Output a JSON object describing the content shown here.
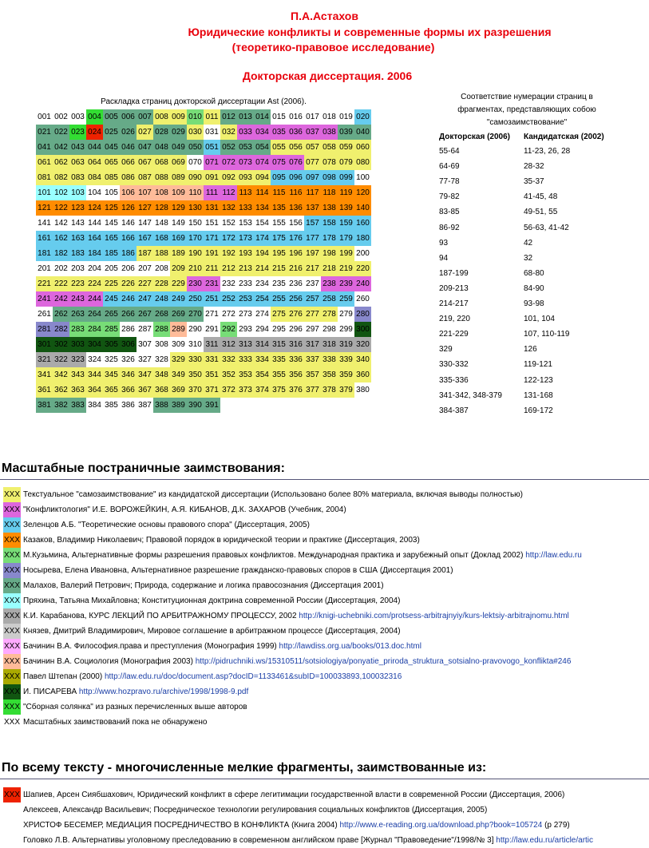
{
  "header": {
    "author": "П.А.Астахов",
    "title": "Юридические конфликты и современные формы их разрешения",
    "subtitle": "(теоретико-правовое исследование)",
    "kind": "Докторская диссертация. 2006"
  },
  "grid": {
    "caption": "Раскладка страниц докторской диссертации Ast (2006).",
    "palette": {
      "y": "#f0f06e",
      "m": "#dd66dd",
      "b": "#66ccee",
      "o": "#ff8c00",
      "g": "#77dd77",
      "p": "#8888cc",
      "d": "#66aa88",
      "c": "#99ffff",
      "s": "#aaaaaa",
      "t": "#cccccc",
      "v": "#ffaaff",
      "k": "#ffbb99",
      "l": "#aaaa00",
      "D": "#115511",
      "G": "#33dd33",
      "r": "#ee2200",
      "n": "transparent"
    },
    "fills": [
      "nnnGdddyygydddnnnnnb",
      "ddGrddyddynymmmmmmdd",
      "ddddddddddbdddyyyyyy",
      "yyyyyyyyynmmmmmmyyyy",
      "yyyyyyyyyyyyyybbbbbn",
      "cccnnkkkkkmmoooooooo",
      "oooooooooooooooooooo",
      "nnnnnnnnnnnnnnnnbbbb",
      "bbbbbbbbbbbbbbbbbbbb",
      "bbbbbbyyyyyyyyyyyyyn",
      "nnnnnnnnyyyyyyyyyyyy",
      "yyyyyyyyymmnnnnnnmmm",
      "mmmmbbbbbbbbbbbbbbbn",
      "ndddddddddnnnnyyyynp",
      "ppgggnngknngnnnnnnnD",
      "DDDDDDnnnnssssssssss",
      "sssnnnnnyyyyyyyyyyyy",
      "yyyyyyyyyyyyyyyyyyyy",
      "yyyyyyyyyyyyyyyyyyyn",
      "dddnnnndddd"
    ],
    "rows": [
      [
        "001",
        "002",
        "003",
        "004",
        "005",
        "006",
        "007",
        "008",
        "009",
        "010",
        "011",
        "012",
        "013",
        "014",
        "015",
        "016",
        "017",
        "018",
        "019",
        "020"
      ],
      [
        "021",
        "022",
        "023",
        "024",
        "025",
        "026",
        "027",
        "028",
        "029",
        "030",
        "031",
        "032",
        "033",
        "034",
        "035",
        "036",
        "037",
        "038",
        "039",
        "040"
      ],
      [
        "041",
        "042",
        "043",
        "044",
        "045",
        "046",
        "047",
        "048",
        "049",
        "050",
        "051",
        "052",
        "053",
        "054",
        "055",
        "056",
        "057",
        "058",
        "059",
        "060"
      ],
      [
        "061",
        "062",
        "063",
        "064",
        "065",
        "066",
        "067",
        "068",
        "069",
        "070",
        "071",
        "072",
        "073",
        "074",
        "075",
        "076",
        "077",
        "078",
        "079",
        "080"
      ],
      [
        "081",
        "082",
        "083",
        "084",
        "085",
        "086",
        "087",
        "088",
        "089",
        "090",
        "091",
        "092",
        "093",
        "094",
        "095",
        "096",
        "097",
        "098",
        "099",
        "100"
      ],
      [
        "101",
        "102",
        "103",
        "104",
        "105",
        "106",
        "107",
        "108",
        "109",
        "110",
        "111",
        "112",
        "113",
        "114",
        "115",
        "116",
        "117",
        "118",
        "119",
        "120"
      ],
      [
        "121",
        "122",
        "123",
        "124",
        "125",
        "126",
        "127",
        "128",
        "129",
        "130",
        "131",
        "132",
        "133",
        "134",
        "135",
        "136",
        "137",
        "138",
        "139",
        "140"
      ],
      [
        "141",
        "142",
        "143",
        "144",
        "145",
        "146",
        "147",
        "148",
        "149",
        "150",
        "151",
        "152",
        "153",
        "154",
        "155",
        "156",
        "157",
        "158",
        "159",
        "160"
      ],
      [
        "161",
        "162",
        "163",
        "164",
        "165",
        "166",
        "167",
        "168",
        "169",
        "170",
        "171",
        "172",
        "173",
        "174",
        "175",
        "176",
        "177",
        "178",
        "179",
        "180"
      ],
      [
        "181",
        "182",
        "183",
        "184",
        "185",
        "186",
        "187",
        "188",
        "189",
        "190",
        "191",
        "192",
        "193",
        "194",
        "195",
        "196",
        "197",
        "198",
        "199",
        "200"
      ],
      [
        "201",
        "202",
        "203",
        "204",
        "205",
        "206",
        "207",
        "208",
        "209",
        "210",
        "211",
        "212",
        "213",
        "214",
        "215",
        "216",
        "217",
        "218",
        "219",
        "220"
      ],
      [
        "221",
        "222",
        "223",
        "224",
        "225",
        "226",
        "227",
        "228",
        "229",
        "230",
        "231",
        "232",
        "233",
        "234",
        "235",
        "236",
        "237",
        "238",
        "239",
        "240"
      ],
      [
        "241",
        "242",
        "243",
        "244",
        "245",
        "246",
        "247",
        "248",
        "249",
        "250",
        "251",
        "252",
        "253",
        "254",
        "255",
        "256",
        "257",
        "258",
        "259",
        "260"
      ],
      [
        "261",
        "262",
        "263",
        "264",
        "265",
        "266",
        "267",
        "268",
        "269",
        "270",
        "271",
        "272",
        "273",
        "274",
        "275",
        "276",
        "277",
        "278",
        "279",
        "280"
      ],
      [
        "281",
        "282",
        "283",
        "284",
        "285",
        "286",
        "287",
        "288",
        "289",
        "290",
        "291",
        "292",
        "293",
        "294",
        "295",
        "296",
        "297",
        "298",
        "299",
        "300"
      ],
      [
        "301",
        "302",
        "303",
        "304",
        "305",
        "306",
        "307",
        "308",
        "309",
        "310",
        "311",
        "312",
        "313",
        "314",
        "315",
        "316",
        "317",
        "318",
        "319",
        "320"
      ],
      [
        "321",
        "322",
        "323",
        "324",
        "325",
        "326",
        "327",
        "328",
        "329",
        "330",
        "331",
        "332",
        "333",
        "334",
        "335",
        "336",
        "337",
        "338",
        "339",
        "340"
      ],
      [
        "341",
        "342",
        "343",
        "344",
        "345",
        "346",
        "347",
        "348",
        "349",
        "350",
        "351",
        "352",
        "353",
        "354",
        "355",
        "356",
        "357",
        "358",
        "359",
        "360"
      ],
      [
        "361",
        "362",
        "363",
        "364",
        "365",
        "366",
        "367",
        "368",
        "369",
        "370",
        "371",
        "372",
        "373",
        "374",
        "375",
        "376",
        "377",
        "378",
        "379",
        "380"
      ],
      [
        "381",
        "382",
        "383",
        "384",
        "385",
        "386",
        "387",
        "388",
        "389",
        "390",
        "391"
      ]
    ]
  },
  "mapping": {
    "caption": [
      "Соответствие нумерации страниц в",
      "фрагментах, представляющих собою",
      "\"самозаимствование\""
    ],
    "columns": [
      "Докторская (2006)",
      "Кандидатская (2002)"
    ],
    "rows": [
      [
        "55-64",
        "11-23, 26, 28"
      ],
      [
        "64-69",
        "28-32"
      ],
      [
        "77-78",
        "35-37"
      ],
      [
        "79-82",
        "41-45, 48"
      ],
      [
        "83-85",
        "49-51, 55"
      ],
      [
        "86-92",
        "56-63, 41-42"
      ],
      [
        "93",
        "42"
      ],
      [
        "94",
        "32"
      ],
      [
        "187-199",
        "68-80"
      ],
      [
        "209-213",
        "84-90"
      ],
      [
        "214-217",
        "93-98"
      ],
      [
        "219, 220",
        "101, 104"
      ],
      [
        "221-229",
        "107, 110-119"
      ],
      [
        "329",
        "126"
      ],
      [
        "330-332",
        "119-121"
      ],
      [
        "335-336",
        "122-123"
      ],
      [
        "341-342, 348-379",
        "131-168"
      ],
      [
        "384-387",
        "169-172"
      ]
    ]
  },
  "sections": [
    {
      "title": "Масштабные постраничные заимствования:",
      "items": [
        {
          "swatch": "XXX",
          "color": "y",
          "text": "Текстуальное \"самозаимствование\" из кандидатской диссертации (Использовано более 80% материала, включая выводы полностью)"
        },
        {
          "swatch": "XXX",
          "color": "m",
          "text": "\"Конфликтология\" И.Е. ВОРОЖЕЙКИН, А.Я. КИБАНОВ, Д.К. ЗАХАРОВ (Учебник, 2004)"
        },
        {
          "swatch": "XXX",
          "color": "b",
          "text": "Зеленцов А.Б. \"Теоретические основы правового спора\" (Диссертация, 2005)"
        },
        {
          "swatch": "XXX",
          "color": "o",
          "text": "Казаков, Владимир Николаевич; Правовой порядок в юридической теории и практике (Диссертация, 2003)"
        },
        {
          "swatch": "XXX",
          "color": "g",
          "text": "М.Кузьмина, Альтернативные формы разрешения правовых конфликтов. Международная практика и зарубежный опыт (Доклад 2002)",
          "link": "http://law.edu.ru"
        },
        {
          "swatch": "XXX",
          "color": "p",
          "text": "Носырева, Елена Ивановна, Альтернативное разрешение гражданско-правовых споров в США (Диссертация 2001)"
        },
        {
          "swatch": "XXX",
          "color": "d",
          "text": "Малахов, Валерий Петрович; Природа, содержание и логика правосознания (Диссертация 2001)"
        },
        {
          "swatch": "XXX",
          "color": "c",
          "text": "Пряхина, Татьяна Михайловна; Конституционная доктрина современной России (Диссертация, 2004)"
        },
        {
          "swatch": "XXX",
          "color": "s",
          "text": "К.И. Карабанова, КУРС ЛЕКЦИЙ ПО АРБИТРАЖНОМУ ПРОЦЕССУ, 2002",
          "link": "http://knigi-uchebniki.com/protsess-arbitrajnyiy/kurs-lektsiy-arbitrajnomu.html"
        },
        {
          "swatch": "XXX",
          "color": "t",
          "text": "Князев, Дмитрий Владимирович, Мировое соглашение в арбитражном процессе (Диссертация, 2004)"
        },
        {
          "swatch": "XXX",
          "color": "v",
          "text": "Бачинин В.А. Философия.права и преступления (Монография 1999)",
          "link": "http://lawdiss.org.ua/books/013.doc.html"
        },
        {
          "swatch": "XXX",
          "color": "k",
          "text": "Бачинин В.А. Социология (Монография 2003)",
          "link": "http://pidruchniki.ws/15310511/sotsiologiya/ponyatie_priroda_struktura_sotsialno-pravovogo_konflikta#246"
        },
        {
          "swatch": "XXX",
          "color": "l",
          "text": "Павел Штепан (2000)",
          "link": "http://law.edu.ru/doc/document.asp?docID=1133461&subID=100033893,100032316"
        },
        {
          "swatch": "XXX",
          "color": "D",
          "text": "И. ПИСАРЕВА",
          "link": "http://www.hozpravo.ru/archive/1998/1998-9.pdf"
        },
        {
          "swatch": "XXX",
          "color": "G",
          "text": "\"Сборная солянка\" из разных перечисленных выше авторов"
        },
        {
          "swatch": "XXX",
          "color": "n",
          "text": "Масштабных заимствований пока не обнаружено"
        }
      ]
    },
    {
      "title": "По всему тексту - многочисленные мелкие фрагменты, заимствованные из:",
      "items": [
        {
          "swatch": "XXX",
          "color": "r",
          "text": "Шапиев, Арсен Сиябшахович, Юридический конфликт в сфере легитимации государственной власти в современной России (Диссертация, 2006)"
        },
        {
          "text": "Алексеев, Александр Васильевич; Посредническое технологии регулирования социальных конфликтов (Диссертация, 2005)"
        },
        {
          "text": "ХРИСТОФ БЕСЕМЕР, МЕДИАЦИЯ ПОСРЕДНИЧЕСТВО В КОНФЛИКТА (Книга 2004)",
          "link": "http://www.e-reading.org.ua/download.php?book=105724",
          "suffix": "(р 279)"
        },
        {
          "text": "Головко Л.В. Альтернативы уголовному преследованию в современном английском праве [Журнал \"Правоведение\"/1998/№ 3]",
          "link": "http://law.edu.ru/article/artic"
        }
      ]
    }
  ]
}
